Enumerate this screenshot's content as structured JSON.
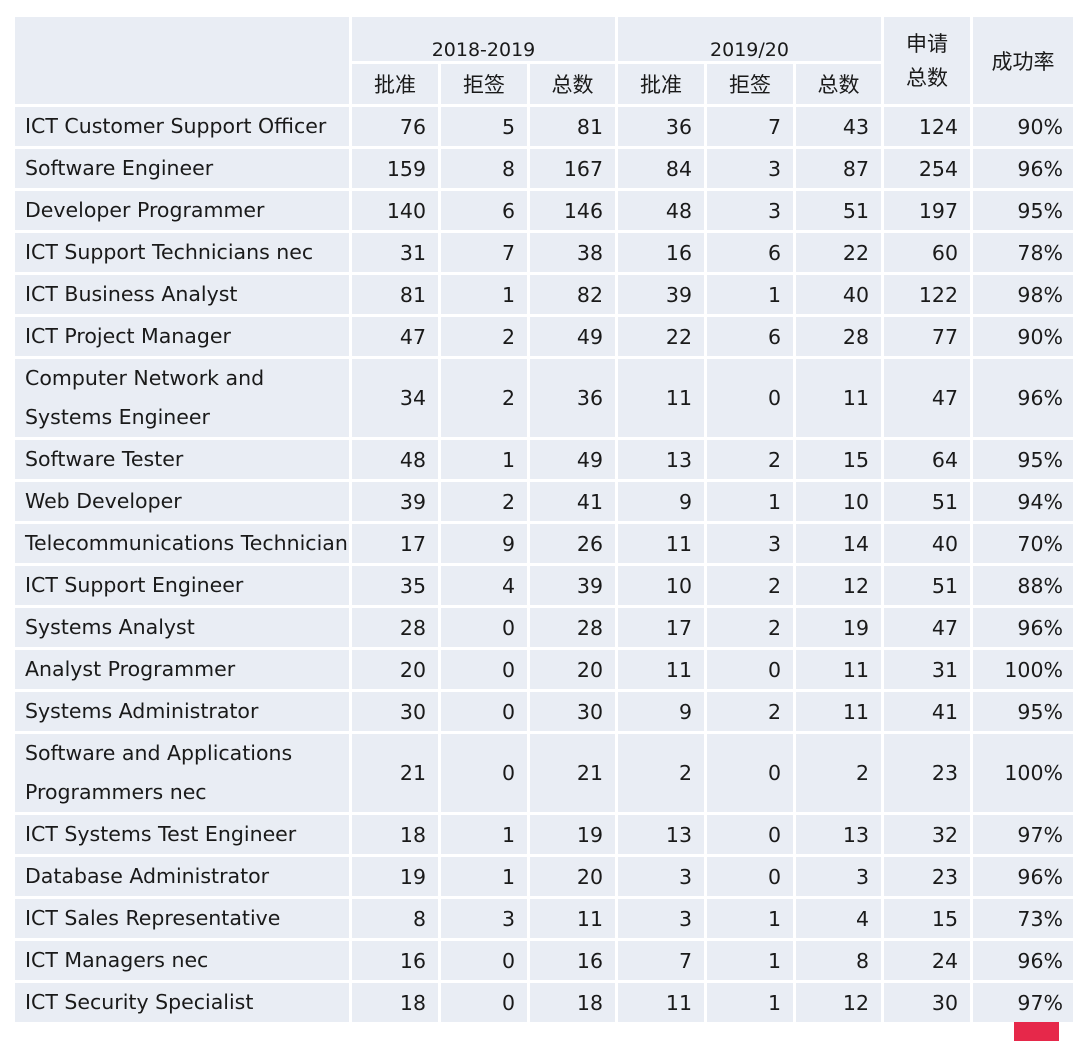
{
  "header": {
    "year1": "2018-2019",
    "year2": "2019/20",
    "approved": "批准",
    "refused": "拒签",
    "total": "总数",
    "applications": "申请\n总数",
    "success_rate": "成功率"
  },
  "rows": [
    [
      "ICT Customer Support Officer",
      "76",
      "5",
      "81",
      "36",
      "7",
      "43",
      "124",
      "90%"
    ],
    [
      "Software Engineer",
      "159",
      "8",
      "167",
      "84",
      "3",
      "87",
      "254",
      "96%"
    ],
    [
      "Developer Programmer",
      "140",
      "6",
      "146",
      "48",
      "3",
      "51",
      "197",
      "95%"
    ],
    [
      "ICT Support Technicians nec",
      "31",
      "7",
      "38",
      "16",
      "6",
      "22",
      "60",
      "78%"
    ],
    [
      "ICT Business Analyst",
      "81",
      "1",
      "82",
      "39",
      "1",
      "40",
      "122",
      "98%"
    ],
    [
      "ICT Project Manager",
      "47",
      "2",
      "49",
      "22",
      "6",
      "28",
      "77",
      "90%"
    ],
    [
      "Computer Network and Systems Engineer",
      "34",
      "2",
      "36",
      "11",
      "0",
      "11",
      "47",
      "96%"
    ],
    [
      "Software Tester",
      "48",
      "1",
      "49",
      "13",
      "2",
      "15",
      "64",
      "95%"
    ],
    [
      "Web Developer",
      "39",
      "2",
      "41",
      "9",
      "1",
      "10",
      "51",
      "94%"
    ],
    [
      "Telecommunications Technician",
      "17",
      "9",
      "26",
      "11",
      "3",
      "14",
      "40",
      "70%"
    ],
    [
      "ICT Support Engineer",
      "35",
      "4",
      "39",
      "10",
      "2",
      "12",
      "51",
      "88%"
    ],
    [
      "Systems Analyst",
      "28",
      "0",
      "28",
      "17",
      "2",
      "19",
      "47",
      "96%"
    ],
    [
      "Analyst Programmer",
      "20",
      "0",
      "20",
      "11",
      "0",
      "11",
      "31",
      "100%"
    ],
    [
      "Systems Administrator",
      "30",
      "0",
      "30",
      "9",
      "2",
      "11",
      "41",
      "95%"
    ],
    [
      "Software and Applications Programmers nec",
      "21",
      "0",
      "21",
      "2",
      "0",
      "2",
      "23",
      "100%"
    ],
    [
      "ICT Systems Test Engineer",
      "18",
      "1",
      "19",
      "13",
      "0",
      "13",
      "32",
      "97%"
    ],
    [
      "Database Administrator",
      "19",
      "1",
      "20",
      "3",
      "0",
      "3",
      "23",
      "96%"
    ],
    [
      "ICT Sales Representative",
      "8",
      "3",
      "11",
      "3",
      "1",
      "4",
      "15",
      "73%"
    ],
    [
      "ICT Managers nec",
      "16",
      "0",
      "16",
      "7",
      "1",
      "8",
      "24",
      "96%"
    ],
    [
      "ICT Security Specialist",
      "18",
      "0",
      "18",
      "11",
      "1",
      "12",
      "30",
      "97%"
    ]
  ]
}
